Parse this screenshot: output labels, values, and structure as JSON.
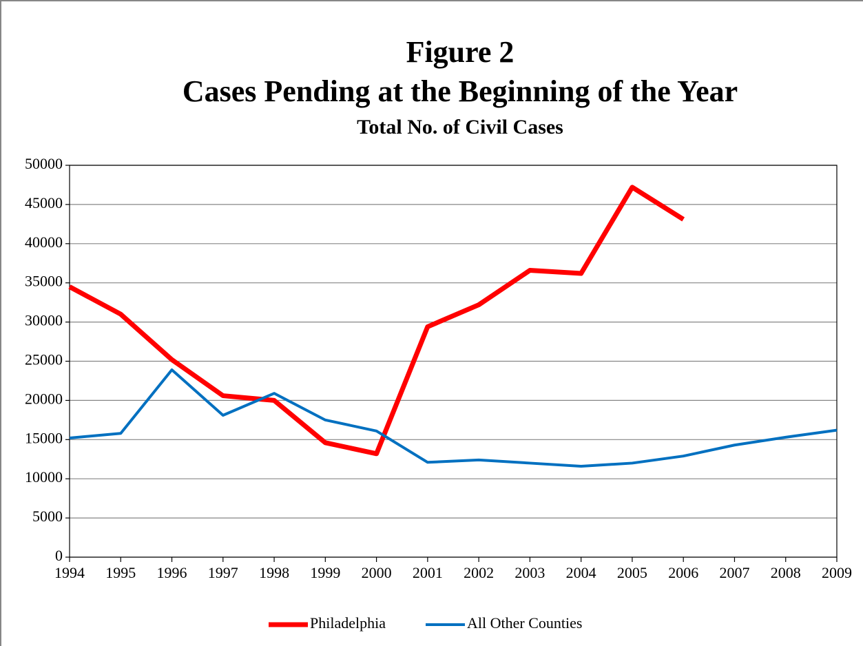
{
  "chart_data": {
    "type": "line",
    "title": "Figure 2",
    "subtitle_lines": [
      "Cases Pending at the Beginning of the Year",
      "Total No. of Civil Cases"
    ],
    "x": [
      1994,
      1995,
      1996,
      1997,
      1998,
      1999,
      2000,
      2001,
      2002,
      2003,
      2004,
      2005,
      2006,
      2007,
      2008,
      2009
    ],
    "xlim": [
      1994,
      2009
    ],
    "xticks": [
      1994,
      1995,
      1996,
      1997,
      1998,
      1999,
      2000,
      2001,
      2002,
      2003,
      2004,
      2005,
      2006,
      2007,
      2008,
      2009
    ],
    "ylim": [
      0,
      50000
    ],
    "yticks": [
      0,
      5000,
      10000,
      15000,
      20000,
      25000,
      30000,
      35000,
      40000,
      45000,
      50000
    ],
    "grid": true,
    "legend": "bottom",
    "series": [
      {
        "name": "Philadelphia",
        "color": "#ff0000",
        "width": 7,
        "values": [
          34500,
          31000,
          25200,
          20600,
          20000,
          14600,
          13200,
          29400,
          32200,
          36600,
          36200,
          47200,
          43100,
          null,
          null,
          null
        ]
      },
      {
        "name": "All Other Counties",
        "color": "#0070c0",
        "width": 4,
        "values": [
          15200,
          15800,
          23900,
          18100,
          20900,
          17500,
          16100,
          12100,
          12400,
          12000,
          11600,
          12000,
          12900,
          14300,
          15300,
          16200
        ]
      }
    ]
  }
}
